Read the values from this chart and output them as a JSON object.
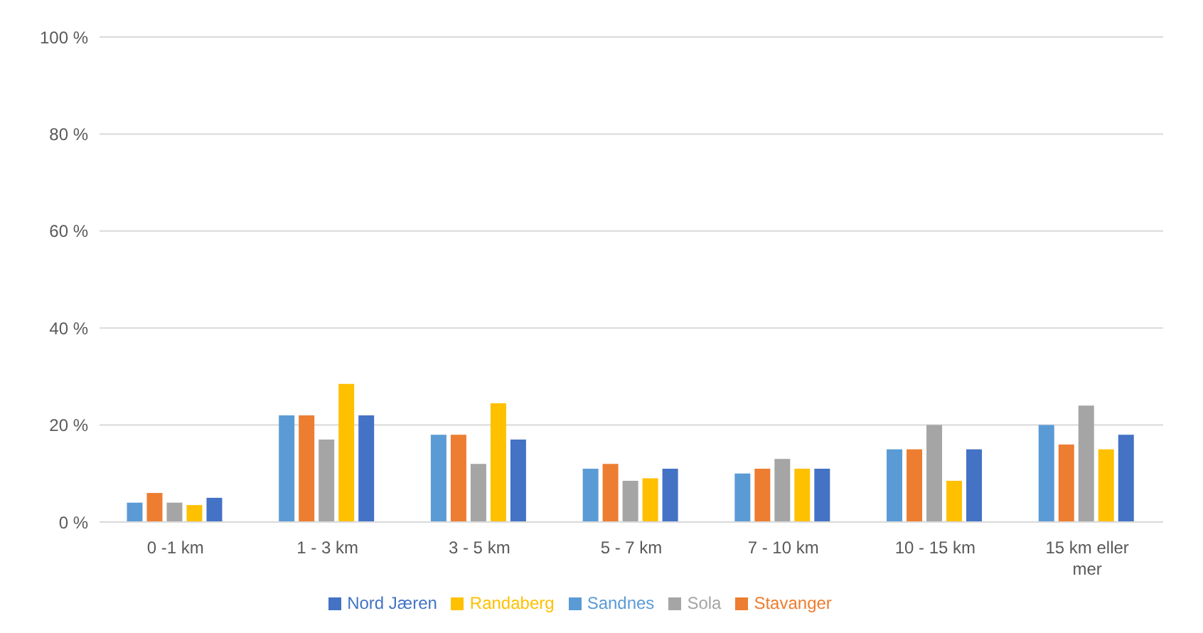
{
  "chart_data": {
    "type": "bar",
    "categories": [
      "0 -1 km",
      "1 - 3 km",
      "3 - 5 km",
      "5 - 7 km",
      "7 - 10 km",
      "10 - 15 km",
      "15 km eller mer"
    ],
    "series": [
      {
        "name": "Sandnes",
        "color": "#5b9bd5",
        "values": [
          4,
          22,
          18,
          11,
          10,
          15,
          20
        ]
      },
      {
        "name": "Stavanger",
        "color": "#ed7d31",
        "values": [
          6,
          22,
          18,
          12,
          11,
          15,
          16
        ]
      },
      {
        "name": "Sola",
        "color": "#a5a5a5",
        "values": [
          4,
          17,
          12,
          8.5,
          13,
          20,
          24
        ]
      },
      {
        "name": "Randaberg",
        "color": "#ffc000",
        "values": [
          3.5,
          28.5,
          24.5,
          9,
          11,
          8.5,
          15
        ]
      },
      {
        "name": "Nord Jæren",
        "color": "#4472c4",
        "values": [
          5,
          22,
          17,
          11,
          11,
          15,
          18
        ]
      }
    ],
    "ylim": [
      0,
      100
    ],
    "yticks": [
      {
        "value": 0,
        "label": "0 %"
      },
      {
        "value": 20,
        "label": "20 %"
      },
      {
        "value": 40,
        "label": "40 %"
      },
      {
        "value": 60,
        "label": "60 %"
      },
      {
        "value": 80,
        "label": "80 %"
      },
      {
        "value": 100,
        "label": "100 %"
      }
    ],
    "grid": "y",
    "legend": "bottom"
  }
}
